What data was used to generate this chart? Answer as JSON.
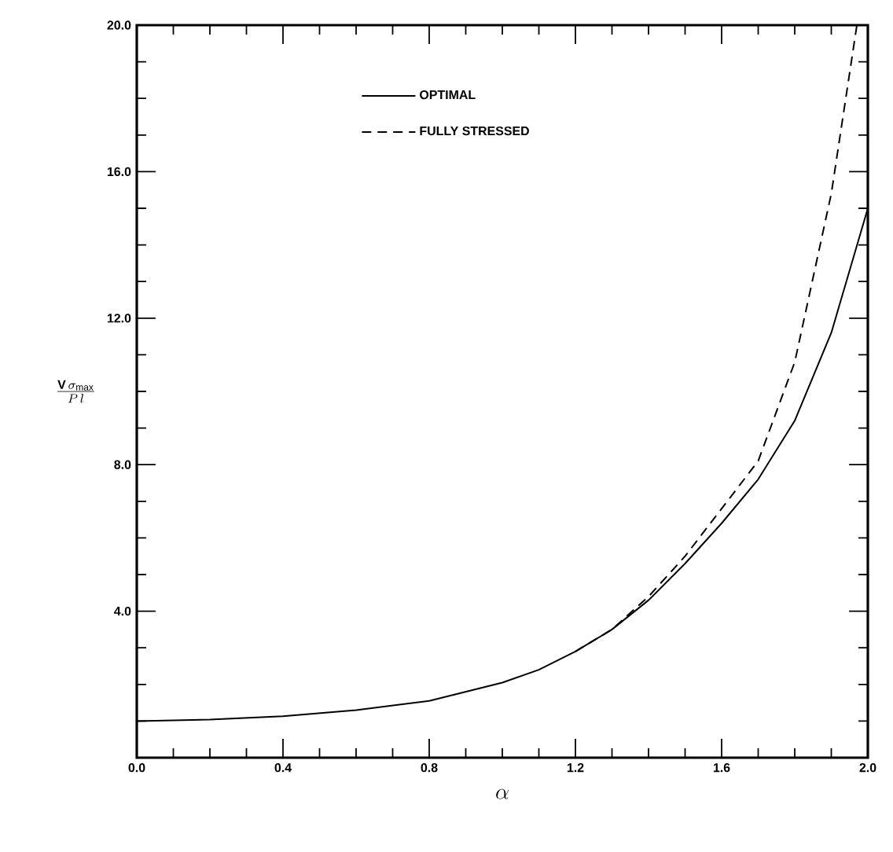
{
  "chart_data": {
    "type": "line",
    "xlabel": "\\alpha",
    "ylabel": "\\frac{\\mathbf{V}\\,\\sigma_{\\mathrm{max}}}{P\\,l}",
    "xlim": [
      0,
      2.0
    ],
    "ylim": [
      0,
      20
    ],
    "xticks": [
      {
        "value": 0,
        "label": "0.0"
      },
      {
        "value": 0.4,
        "label": "0.4"
      },
      {
        "value": 0.8,
        "label": "0.8"
      },
      {
        "value": 1.2,
        "label": "1.2"
      },
      {
        "value": 1.6,
        "label": "1.6"
      },
      {
        "value": 2.0,
        "label": "2.0"
      }
    ],
    "yticks": [
      {
        "value": 0,
        "label": null
      },
      {
        "value": 4,
        "label": "4.0"
      },
      {
        "value": 8,
        "label": "8.0"
      },
      {
        "value": 12,
        "label": "12.0"
      },
      {
        "value": 16,
        "label": "16.0"
      },
      {
        "value": 20,
        "label": "20.0"
      }
    ],
    "legend": "top",
    "series": [
      {
        "name": "OPTIMAL",
        "color": "#000000",
        "line_style": "solid",
        "x": [
          0,
          0.2,
          0.4,
          0.6,
          0.8,
          1.0,
          1.1,
          1.2,
          1.3,
          1.4,
          1.5,
          1.6,
          1.7,
          1.8,
          1.9,
          2.0
        ],
        "values": [
          1.0,
          1.04,
          1.13,
          1.3,
          1.55,
          2.05,
          2.4,
          2.9,
          3.5,
          4.3,
          5.3,
          6.4,
          7.6,
          9.2,
          11.6,
          15.0
        ]
      },
      {
        "name": "FULLY STRESSED",
        "color": "#000000",
        "line_style": "dashed",
        "x": [
          1.2,
          1.3,
          1.4,
          1.5,
          1.6,
          1.7,
          1.8,
          1.9,
          1.97
        ],
        "values": [
          2.9,
          3.5,
          4.4,
          5.5,
          6.8,
          8.1,
          10.8,
          15.4,
          20.0
        ]
      }
    ]
  }
}
